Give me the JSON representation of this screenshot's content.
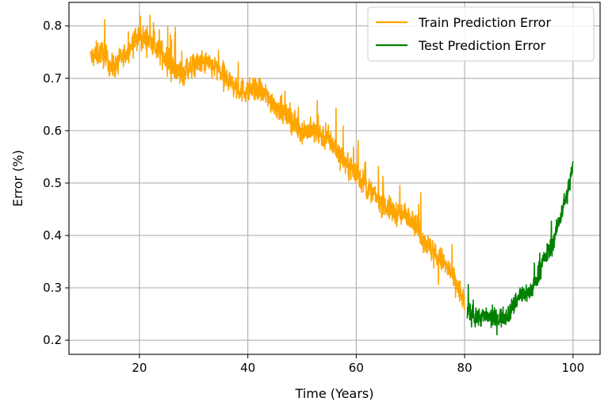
{
  "chart_data": {
    "type": "line",
    "xlabel": "Time (Years)",
    "ylabel": "Error (%)",
    "xlim": [
      7,
      105
    ],
    "ylim": [
      0.173,
      0.845
    ],
    "xticks": [
      20,
      40,
      60,
      80,
      100
    ],
    "yticks": [
      0.2,
      0.3,
      0.4,
      0.5,
      0.6,
      0.7,
      0.8
    ],
    "xtick_labels": [
      "20",
      "40",
      "60",
      "80",
      "100"
    ],
    "ytick_labels": [
      "0.2",
      "0.3",
      "0.4",
      "0.5",
      "0.6",
      "0.7",
      "0.8"
    ],
    "grid": true,
    "legend_position": "top-right",
    "series": [
      {
        "name": "Train Prediction Error",
        "color": "#FFA500",
        "x": [
          11,
          13,
          15,
          17,
          19,
          20,
          22,
          24,
          26,
          28,
          30,
          32,
          34,
          36,
          38,
          40,
          42,
          44,
          46,
          48,
          50,
          52,
          54,
          56,
          58,
          60,
          62,
          64,
          66,
          68,
          70,
          72,
          74,
          76,
          78,
          80
        ],
        "y": [
          0.74,
          0.75,
          0.72,
          0.74,
          0.77,
          0.78,
          0.77,
          0.75,
          0.72,
          0.71,
          0.725,
          0.73,
          0.72,
          0.7,
          0.68,
          0.675,
          0.68,
          0.66,
          0.64,
          0.62,
          0.6,
          0.6,
          0.59,
          0.57,
          0.54,
          0.52,
          0.49,
          0.47,
          0.45,
          0.44,
          0.44,
          0.4,
          0.37,
          0.35,
          0.32,
          0.27
        ],
        "noise": 0.022,
        "spike_prob": 0.05,
        "spike_amp": 0.05
      },
      {
        "name": "Test Prediction Error",
        "color": "#008000",
        "x": [
          80.5,
          82,
          84,
          86,
          88,
          89,
          90,
          91,
          92,
          93,
          94,
          95,
          96,
          97,
          98,
          99,
          100
        ],
        "y": [
          0.255,
          0.245,
          0.245,
          0.24,
          0.25,
          0.265,
          0.285,
          0.29,
          0.29,
          0.31,
          0.34,
          0.36,
          0.38,
          0.41,
          0.45,
          0.48,
          0.535
        ],
        "noise": 0.018,
        "spike_prob": 0.05,
        "spike_amp": 0.04
      }
    ]
  }
}
